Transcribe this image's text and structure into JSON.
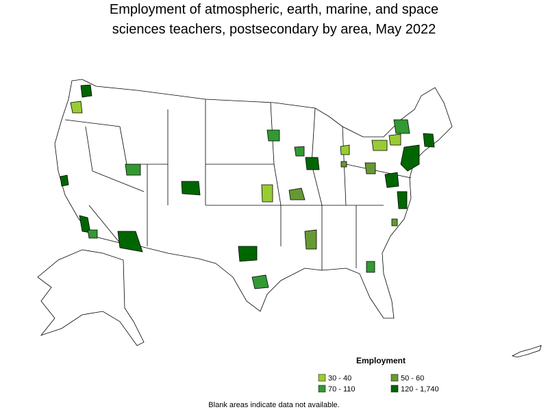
{
  "title": [
    "Employment of atmospheric, earth, marine, and space",
    "sciences teachers, postsecondary by area, May 2022"
  ],
  "legend": {
    "title": "Employment",
    "items": [
      {
        "label": "30 - 40",
        "color": "#99cc33"
      },
      {
        "label": "50 - 60",
        "color": "#669933"
      },
      {
        "label": "70 - 110",
        "color": "#339933"
      },
      {
        "label": "120 - 1,740",
        "color": "#006600"
      }
    ]
  },
  "note": "Blank areas indicate data not available."
}
